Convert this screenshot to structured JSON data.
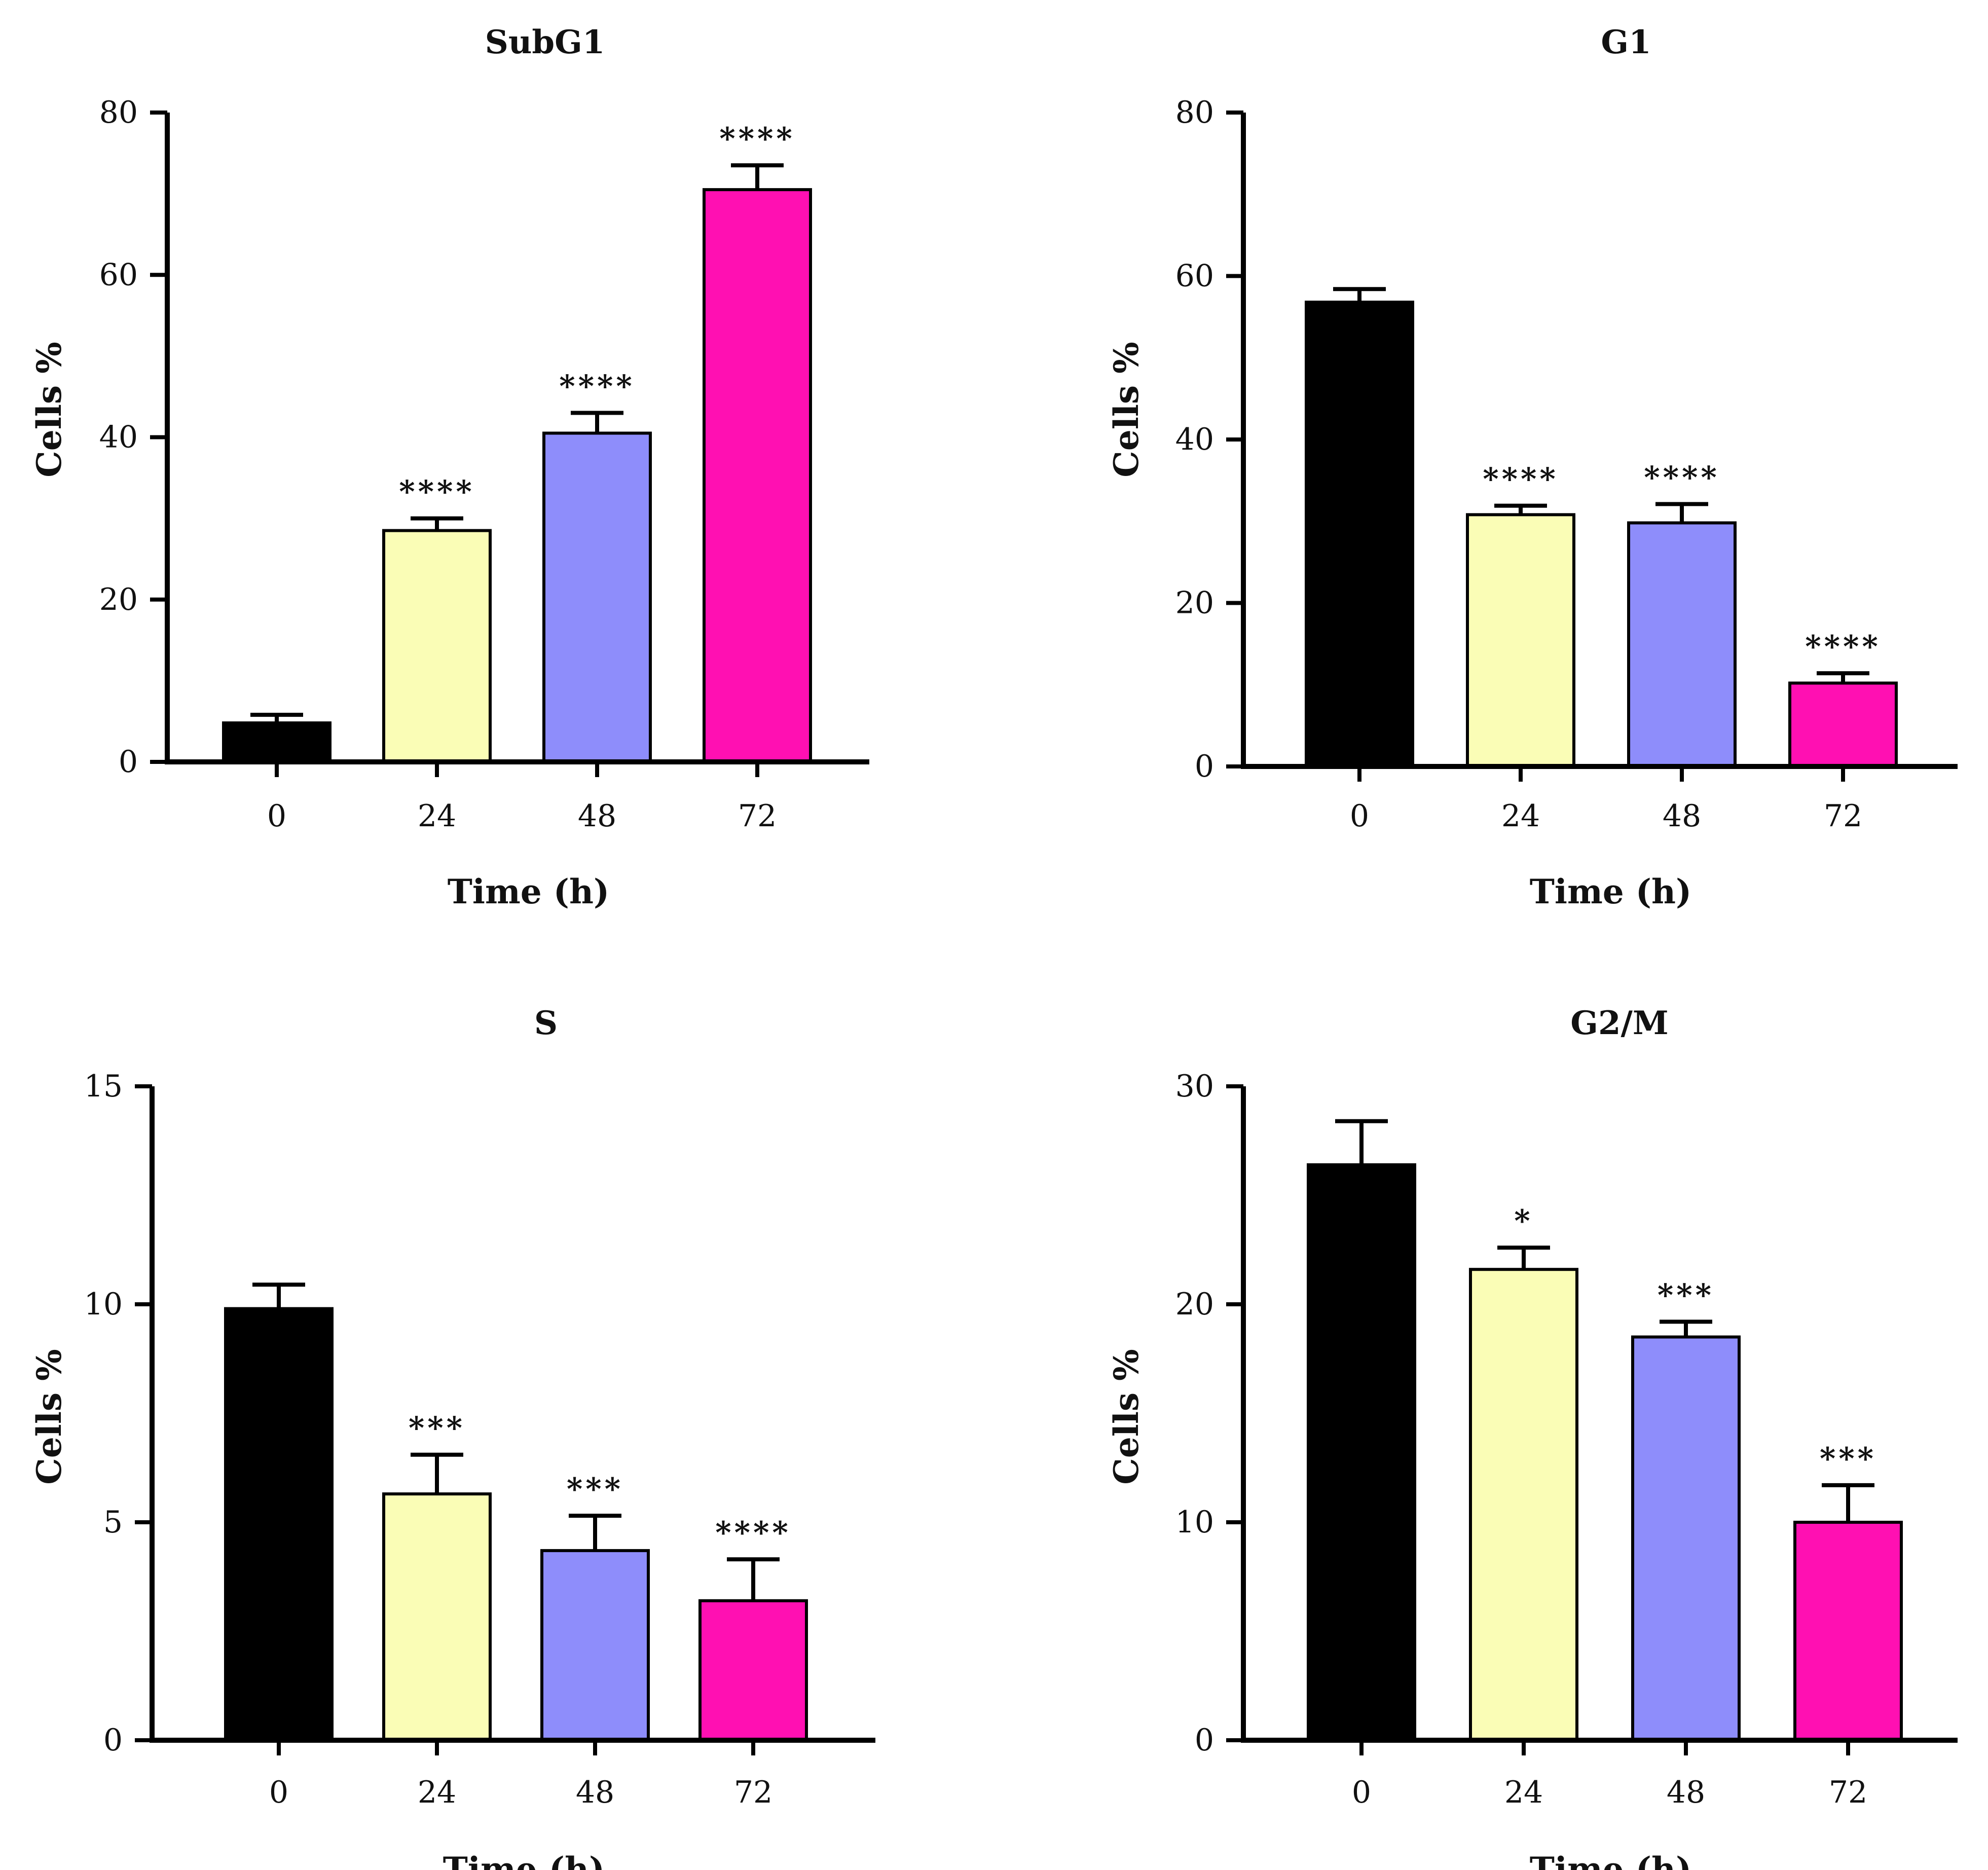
{
  "chart_data": [
    {
      "type": "bar",
      "title": "SubG1",
      "xlabel": "Time (h)",
      "ylabel": "Cells %",
      "categories": [
        "0",
        "24",
        "48",
        "72"
      ],
      "values": [
        4.8,
        28.5,
        40.5,
        70.5
      ],
      "errors": [
        1.0,
        1.5,
        2.5,
        3.0
      ],
      "significance": [
        "",
        "****",
        "****",
        "****"
      ],
      "ylim": [
        0,
        80
      ],
      "yticks": [
        0,
        20,
        40,
        60,
        80
      ],
      "colors": [
        "#000000",
        "#fafdb6",
        "#8e8dfb",
        "#ff10b2"
      ]
    },
    {
      "type": "bar",
      "title": "G1",
      "xlabel": "Time (h)",
      "ylabel": "Cells %",
      "categories": [
        "0",
        "24",
        "48",
        "72"
      ],
      "values": [
        56.8,
        30.8,
        29.8,
        10.2
      ],
      "errors": [
        1.6,
        1.1,
        2.3,
        1.2
      ],
      "significance": [
        "",
        "****",
        "****",
        "****"
      ],
      "ylim": [
        0,
        80
      ],
      "yticks": [
        0,
        20,
        40,
        60,
        80
      ],
      "colors": [
        "#000000",
        "#fafdb6",
        "#8e8dfb",
        "#ff10b2"
      ]
    },
    {
      "type": "bar",
      "title": "S",
      "xlabel": "Time (h)",
      "ylabel": "Cells %",
      "categories": [
        "0",
        "24",
        "48",
        "72"
      ],
      "values": [
        9.9,
        5.65,
        4.35,
        3.2
      ],
      "errors": [
        0.55,
        0.9,
        0.8,
        0.95
      ],
      "significance": [
        "",
        "***",
        "***",
        "****"
      ],
      "ylim": [
        0,
        15
      ],
      "yticks": [
        0,
        5,
        10,
        15
      ],
      "colors": [
        "#000000",
        "#fafdb6",
        "#8e8dfb",
        "#ff10b2"
      ]
    },
    {
      "type": "bar",
      "title": "G2/M",
      "xlabel": "Time (h)",
      "ylabel": "Cells %",
      "categories": [
        "0",
        "24",
        "48",
        "72"
      ],
      "values": [
        26.4,
        21.6,
        18.5,
        10.0
      ],
      "errors": [
        2.0,
        1.0,
        0.7,
        1.7
      ],
      "significance": [
        "",
        "*",
        "***",
        "***"
      ],
      "ylim": [
        0,
        30
      ],
      "yticks": [
        0,
        10,
        20,
        30
      ],
      "colors": [
        "#000000",
        "#fafdb6",
        "#8e8dfb",
        "#ff10b2"
      ]
    }
  ]
}
